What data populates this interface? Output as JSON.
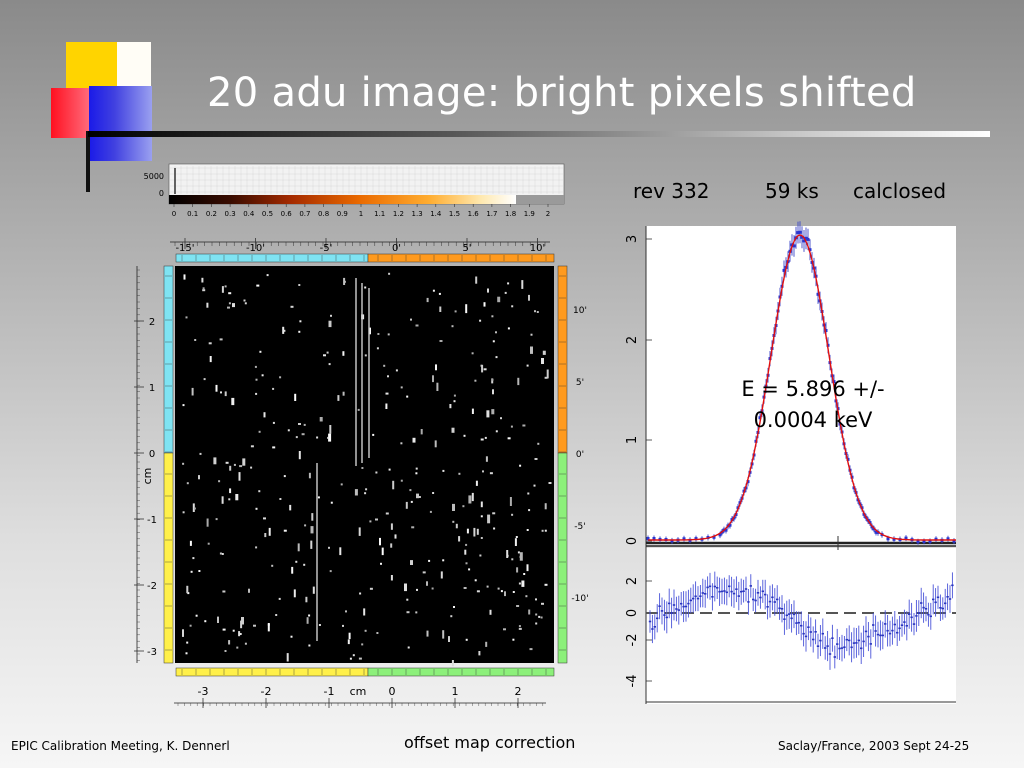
{
  "slide": {
    "title": "20 adu image: bright pixels shifted",
    "caption": "offset map correction",
    "footer_left": "EPIC Calibration Meeting, K. Dennerl",
    "footer_right": "Saclay/France, 2003 Sept 24-25"
  },
  "spectrum": {
    "label_rev": "rev 332",
    "label_exposure": "59 ks",
    "label_filter": "calclosed",
    "energy_line1": "E = 5.896 +/-",
    "energy_line2": "0.0004 keV",
    "top_ticks": [
      "0",
      "1",
      "2",
      "3"
    ],
    "residual_ticks": [
      "-4",
      "-2",
      "0",
      "2"
    ]
  },
  "image": {
    "colorbar_max": "5000",
    "colorbar_min": "0",
    "colorbar_ticks": [
      "0",
      "0.1",
      "0.2",
      "0.3",
      "0.4",
      "0.5",
      "0.6",
      "0.7",
      "0.8",
      "0.9",
      "1",
      "1.1",
      "1.2",
      "1.3",
      "1.4",
      "1.5",
      "1.6",
      "1.7",
      "1.8",
      "1.9",
      "2"
    ],
    "top_arcmin_ticks": [
      "-15'",
      "-10'",
      "-5'",
      "0'",
      "5'",
      "10'"
    ],
    "right_arcmin_ticks": [
      "10'",
      "5'",
      "0'",
      "-5'",
      "-10'"
    ],
    "left_cm_ticks": [
      "2",
      "1",
      "0",
      "-1",
      "-2",
      "-3"
    ],
    "left_axis_unit": "cm",
    "bottom_cm_ticks": [
      "-3",
      "-2",
      "-1",
      "0",
      "1",
      "2"
    ],
    "bottom_axis_unit": "cm",
    "colors": {
      "cyan": "#7fe3f2",
      "orange": "#ff9a1e",
      "yellow": "#fff04a",
      "green": "#8cf07a"
    }
  }
}
